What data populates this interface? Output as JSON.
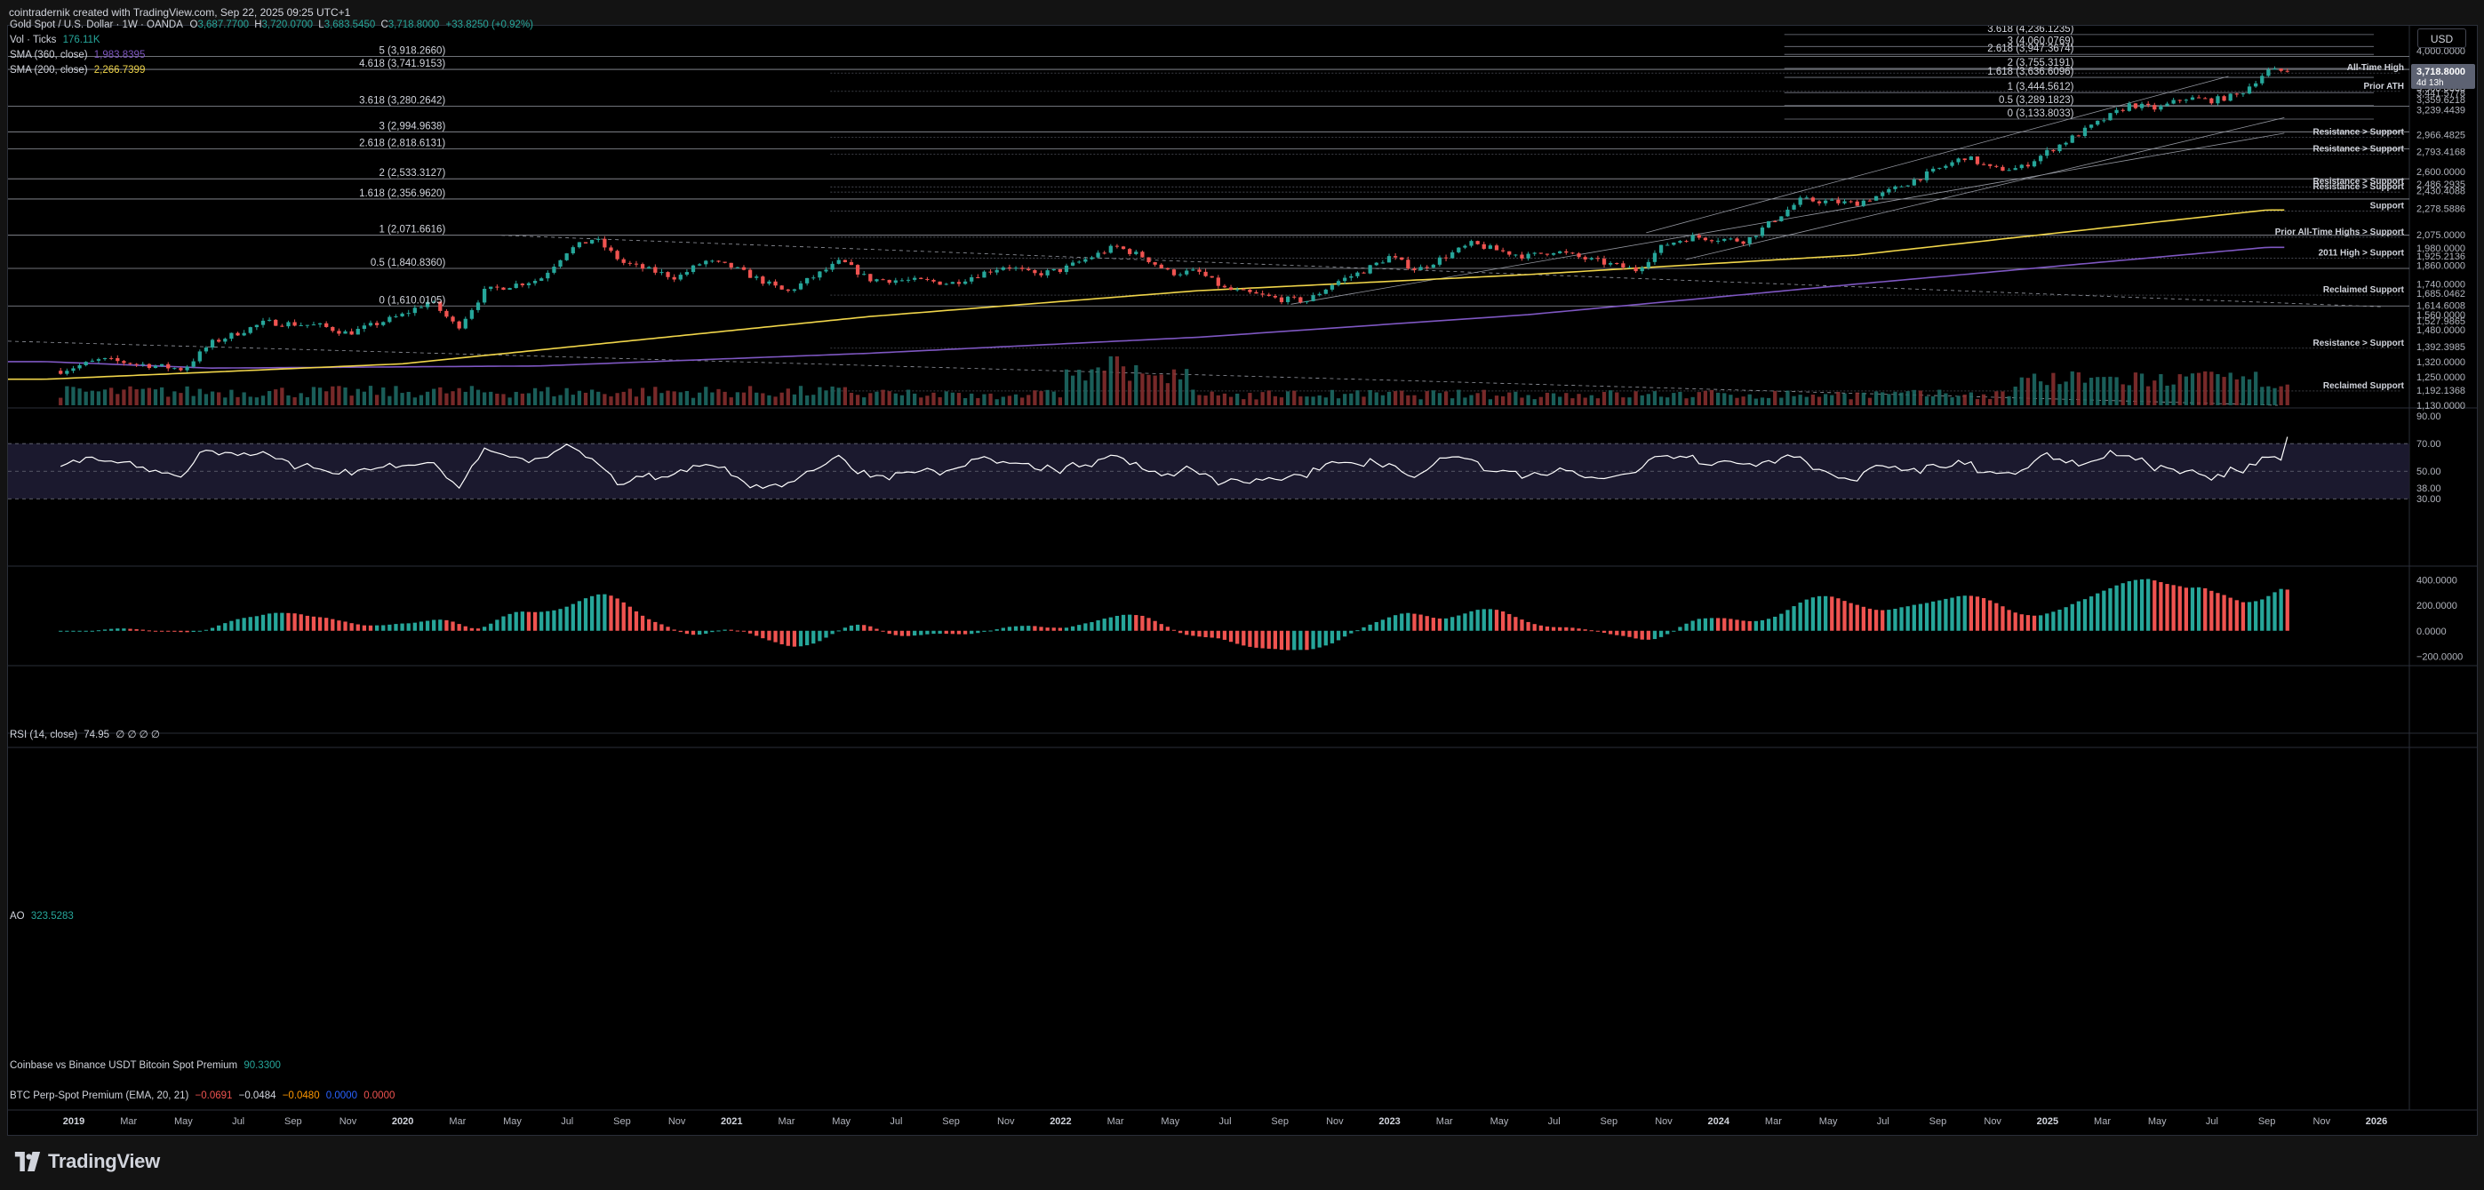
{
  "caption": "cointradernik created with TradingView.com, Sep 22, 2025 09:25 UTC+1",
  "brand": "TradingView",
  "currency": "USD",
  "main_legend": {
    "symbol": "Gold Spot / U.S. Dollar · 1W · OANDA",
    "open": "3,687.7700",
    "high": "3,720.0700",
    "low": "3,683.5450",
    "close": "3,718.8000",
    "change": "+33.8250 (+0.92%)",
    "vol_label": "Vol · Ticks",
    "vol_value": "176.11K",
    "sma360_label": "SMA (360, close)",
    "sma360_value": "1,983.8395",
    "sma200_label": "SMA (200, close)",
    "sma200_value": "2,266.7399"
  },
  "rsi_legend": {
    "label": "RSI (14, close)",
    "value": "74.95",
    "extra": "∅ ∅ ∅ ∅"
  },
  "ao_legend": {
    "label": "AO",
    "value": "323.5283"
  },
  "premium_legend": {
    "label": "Coinbase vs Binance USDT Bitcoin Spot Premium",
    "value": "90.3300"
  },
  "perp_legend": {
    "label": "BTC Perp-Spot Premium (EMA, 20, 21)",
    "v1": "−0.0691",
    "v2": "−0.0484",
    "v3": "−0.0480",
    "v4": "0.0000",
    "v5": "0.0000"
  },
  "colors": {
    "up": "#26a69a",
    "down": "#ef5350",
    "sma200": "#f0d54a",
    "sma360": "#7e57c2",
    "background": "#000000",
    "text": "#d1d4dc"
  },
  "fib_left": [
    {
      "label": "5 (3,918.2660)",
      "price": 3918.266
    },
    {
      "label": "4.618 (3,741.9153)",
      "price": 3741.9153
    },
    {
      "label": "3.618 (3,280.2642)",
      "price": 3280.2642
    },
    {
      "label": "3 (2,994.9638)",
      "price": 2994.9638
    },
    {
      "label": "2.618 (2,818.6131)",
      "price": 2818.6131
    },
    {
      "label": "2 (2,533.3127)",
      "price": 2533.3127
    },
    {
      "label": "1.618 (2,356.9620)",
      "price": 2356.962
    },
    {
      "label": "1 (2,071.6616)",
      "price": 2071.6616
    },
    {
      "label": "0.5 (1,840.8360)",
      "price": 1840.836
    },
    {
      "label": "0 (1,610.0105)",
      "price": 1610.0105
    }
  ],
  "fib_right": [
    {
      "label": "3.618 (4,236.1235)",
      "price": 4236.1235
    },
    {
      "label": "3 (4,060.0769)",
      "price": 4060.0769
    },
    {
      "label": "2.618 (3,947.3674)",
      "price": 3947.3674
    },
    {
      "label": "2 (3,755.3191)",
      "price": 3755.3191
    },
    {
      "label": "1.618 (3,636.6096)",
      "price": 3636.6096
    },
    {
      "label": "1 (3,444.5612)",
      "price": 3444.5612
    },
    {
      "label": "0.5 (3,289.1823)",
      "price": 3289.1823
    },
    {
      "label": "0 (3,133.8033)",
      "price": 3133.8033
    }
  ],
  "annotations": [
    {
      "text": "All-Time High",
      "price": 3752
    },
    {
      "text": "Prior ATH",
      "price": 3515
    },
    {
      "text": "Resistance > Support",
      "price": 2982
    },
    {
      "text": "Resistance > Support",
      "price": 2808
    },
    {
      "text": "Resistance > Support",
      "price": 2501
    },
    {
      "text": "Resistance > Support",
      "price": 2455
    },
    {
      "text": "Support",
      "price": 2293
    },
    {
      "text": "Prior All-Time Highs > Support",
      "price": 2090
    },
    {
      "text": "2011 High > Support",
      "price": 1940
    },
    {
      "text": "Reclaimed Support",
      "price": 1700
    },
    {
      "text": "Resistance > Support",
      "price": 1407
    },
    {
      "text": "Reclaimed Support",
      "price": 1208
    }
  ],
  "price_axis_ticks": [
    "4,000.0000",
    "3,721.0000",
    "3,500.0000",
    "3,441.5778",
    "3,359.6218",
    "3,239.4439",
    "2,966.4825",
    "2,793.4168",
    "2,600.0000",
    "2,486.2935",
    "2,430.4088",
    "2,278.5886",
    "2,075.0000",
    "1,980.0000",
    "1,925.2136",
    "1,860.0000",
    "1,740.0000",
    "1,685.0462",
    "1,614.6008",
    "1,560.0000",
    "1,527.9865",
    "1,480.0000",
    "1,392.3985",
    "1,320.0000",
    "1,250.0000",
    "1,192.1368",
    "1,130.0000"
  ],
  "price_badges": [
    {
      "text": "3,718.8000",
      "sub": "4d 13h"
    }
  ],
  "rsi_axis_ticks": [
    "90.00",
    "70.00",
    "50.00",
    "38.00",
    "30.00"
  ],
  "ao_axis_ticks": [
    "400.0000",
    "200.0000",
    "0.0000",
    "−200.0000"
  ],
  "time_axis_ticks": [
    "2019",
    "Mar",
    "May",
    "Jul",
    "Sep",
    "Nov",
    "2020",
    "Mar",
    "May",
    "Jul",
    "Sep",
    "Nov",
    "2021",
    "Mar",
    "May",
    "Jul",
    "Sep",
    "Nov",
    "2022",
    "Mar",
    "May",
    "Jul",
    "Sep",
    "Nov",
    "2023",
    "Mar",
    "May",
    "Jul",
    "Sep",
    "Nov",
    "2024",
    "Mar",
    "May",
    "Jul",
    "Sep",
    "Nov",
    "2025",
    "Mar",
    "May",
    "Jul",
    "Sep",
    "Nov",
    "2026"
  ],
  "chart_data": {
    "type": "candlestick",
    "title": "Gold Spot / U.S. Dollar · 1W · OANDA",
    "x_range": [
      "2019-01",
      "2026-01"
    ],
    "ylim": [
      1130,
      4000
    ],
    "log_scale": true,
    "keyframes_close": [
      [
        "2018-12",
        1260
      ],
      [
        "2019-02",
        1330
      ],
      [
        "2019-05",
        1285
      ],
      [
        "2019-06",
        1410
      ],
      [
        "2019-08",
        1520
      ],
      [
        "2019-10",
        1500
      ],
      [
        "2019-11",
        1460
      ],
      [
        "2020-01",
        1560
      ],
      [
        "2020-02",
        1640
      ],
      [
        "2020-03",
        1490
      ],
      [
        "2020-04",
        1700
      ],
      [
        "2020-06",
        1770
      ],
      [
        "2020-07",
        1960
      ],
      [
        "2020-08",
        2050
      ],
      [
        "2020-09",
        1880
      ],
      [
        "2020-11",
        1780
      ],
      [
        "2020-12",
        1890
      ],
      [
        "2021-01",
        1850
      ],
      [
        "2021-03",
        1690
      ],
      [
        "2021-05",
        1890
      ],
      [
        "2021-06",
        1770
      ],
      [
        "2021-08",
        1760
      ],
      [
        "2021-09",
        1745
      ],
      [
        "2021-11",
        1860
      ],
      [
        "2021-12",
        1800
      ],
      [
        "2022-01",
        1830
      ],
      [
        "2022-03",
        1990
      ],
      [
        "2022-04",
        1920
      ],
      [
        "2022-05",
        1810
      ],
      [
        "2022-06",
        1820
      ],
      [
        "2022-07",
        1710
      ],
      [
        "2022-09",
        1650
      ],
      [
        "2022-10",
        1640
      ],
      [
        "2022-11",
        1750
      ],
      [
        "2022-12",
        1820
      ],
      [
        "2023-01",
        1920
      ],
      [
        "2023-02",
        1830
      ],
      [
        "2023-04",
        2010
      ],
      [
        "2023-05",
        1960
      ],
      [
        "2023-06",
        1920
      ],
      [
        "2023-07",
        1960
      ],
      [
        "2023-08",
        1910
      ],
      [
        "2023-10",
        1830
      ],
      [
        "2023-11",
        2000
      ],
      [
        "2023-12",
        2060
      ],
      [
        "2024-02",
        2030
      ],
      [
        "2024-04",
        2350
      ],
      [
        "2024-06",
        2320
      ],
      [
        "2024-07",
        2400
      ],
      [
        "2024-09",
        2620
      ],
      [
        "2024-10",
        2740
      ],
      [
        "2024-11",
        2620
      ],
      [
        "2024-12",
        2630
      ],
      [
        "2025-01",
        2790
      ],
      [
        "2025-02",
        2950
      ],
      [
        "2025-04",
        3300
      ],
      [
        "2025-05",
        3250
      ],
      [
        "2025-06",
        3380
      ],
      [
        "2025-07",
        3350
      ],
      [
        "2025-08",
        3420
      ],
      [
        "2025-09",
        3720
      ]
    ],
    "last_close": 3718.8,
    "sma200_keyframes": [
      [
        "2018-12",
        1240
      ],
      [
        "2020-01",
        1310
      ],
      [
        "2021-06",
        1550
      ],
      [
        "2022-06",
        1700
      ],
      [
        "2023-06",
        1800
      ],
      [
        "2024-06",
        1930
      ],
      [
        "2025-09",
        2266.74
      ]
    ],
    "sma360_keyframes": [
      [
        "2018-12",
        1320
      ],
      [
        "2019-06",
        1290
      ],
      [
        "2020-06",
        1300
      ],
      [
        "2021-06",
        1360
      ],
      [
        "2022-06",
        1440
      ],
      [
        "2023-06",
        1560
      ],
      [
        "2024-06",
        1740
      ],
      [
        "2025-09",
        1983.84
      ]
    ],
    "rsi_last": 74.95,
    "ao_last": 323.5283,
    "rsi_range": [
      25,
      92
    ],
    "ao_range": [
      -260,
      480
    ]
  }
}
